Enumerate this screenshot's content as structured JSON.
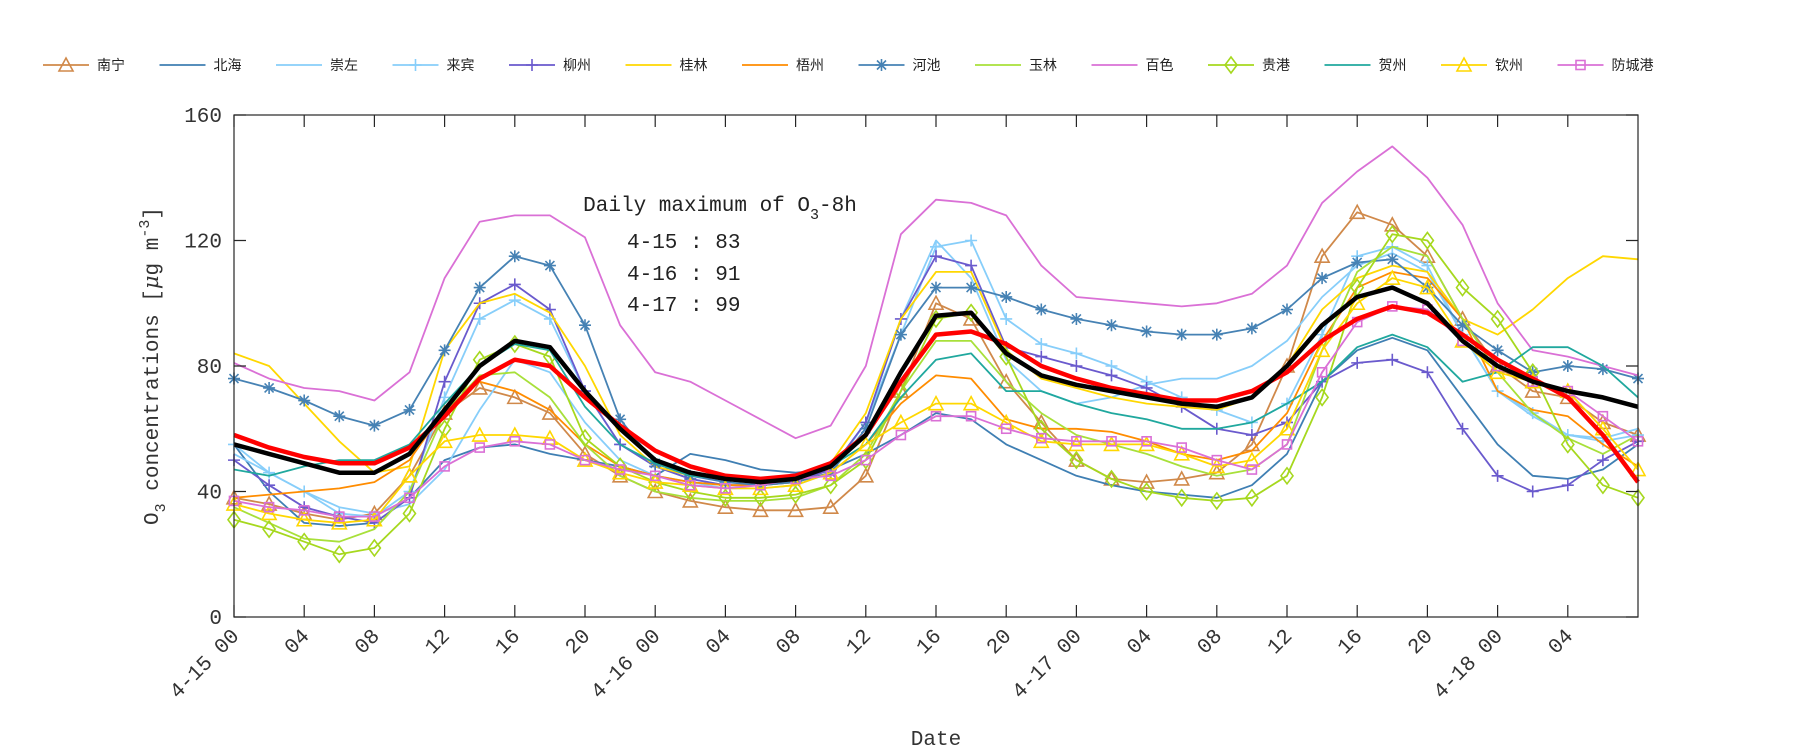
{
  "chart_data": {
    "type": "line",
    "xlabel": "Date",
    "ylabel_parts": [
      "O",
      "3",
      " concentrations [",
      "μ",
      "g m",
      "-3",
      "]"
    ],
    "ylim": [
      0,
      160
    ],
    "yticks": [
      "0",
      "40",
      "80",
      "120",
      "160"
    ],
    "xlim": [
      "4-15 00",
      "4-18 08"
    ],
    "x_ticks": [
      "4-15 00",
      "04",
      "08",
      "12",
      "16",
      "20",
      "4-16 00",
      "04",
      "08",
      "12",
      "16",
      "20",
      "4-17 00",
      "04",
      "08",
      "12",
      "16",
      "20",
      "4-18 00",
      "04"
    ],
    "x_tick_positions": [
      "4-15 00",
      "4-15 04",
      "4-15 08",
      "4-15 12",
      "4-15 16",
      "4-15 20",
      "4-16 00",
      "4-16 04",
      "4-16 08",
      "4-16 12",
      "4-16 16",
      "4-16 20",
      "4-17 00",
      "4-17 04",
      "4-17 08",
      "4-17 12",
      "4-17 16",
      "4-17 20",
      "4-18 00",
      "4-18 04"
    ],
    "grid": false,
    "legend_position": "top",
    "annotation": {
      "title_parts": [
        "Daily maximum of O",
        "3",
        "-8h"
      ],
      "lines": [
        "4-15 : 83",
        "4-16 : 91",
        "4-17 : 99"
      ]
    },
    "x": [
      "4-15 00",
      "4-15 02",
      "4-15 04",
      "4-15 06",
      "4-15 08",
      "4-15 10",
      "4-15 12",
      "4-15 14",
      "4-15 16",
      "4-15 18",
      "4-15 20",
      "4-15 22",
      "4-16 00",
      "4-16 02",
      "4-16 04",
      "4-16 06",
      "4-16 08",
      "4-16 10",
      "4-16 12",
      "4-16 14",
      "4-16 16",
      "4-16 18",
      "4-16 20",
      "4-16 22",
      "4-17 00",
      "4-17 02",
      "4-17 04",
      "4-17 06",
      "4-17 08",
      "4-17 10",
      "4-17 12",
      "4-17 14",
      "4-17 16",
      "4-17 18",
      "4-17 20",
      "4-17 22",
      "4-18 00",
      "4-18 02",
      "4-18 04",
      "4-18 06",
      "4-18 08"
    ],
    "series": [
      {
        "name": "南宁",
        "color": "#d0894a",
        "marker": "triangle",
        "values": [
          38,
          36,
          33,
          31,
          33,
          45,
          65,
          73,
          70,
          65,
          52,
          45,
          40,
          37,
          35,
          34,
          34,
          35,
          45,
          72,
          100,
          95,
          75,
          62,
          50,
          44,
          43,
          44,
          46,
          55,
          80,
          115,
          129,
          125,
          115,
          95,
          80,
          72,
          70,
          62,
          58
        ]
      },
      {
        "name": "北海",
        "color": "#3f7fb3",
        "marker": "none",
        "values": [
          55,
          40,
          30,
          29,
          30,
          38,
          50,
          54,
          55,
          52,
          50,
          48,
          45,
          52,
          50,
          47,
          46,
          47,
          52,
          58,
          65,
          63,
          55,
          50,
          45,
          42,
          40,
          39,
          38,
          42,
          52,
          75,
          85,
          89,
          85,
          70,
          55,
          45,
          44,
          47,
          55
        ]
      },
      {
        "name": "崇左",
        "color": "#87cefa",
        "marker": "none",
        "values": [
          52,
          46,
          40,
          35,
          33,
          36,
          47,
          66,
          82,
          78,
          62,
          50,
          45,
          43,
          41,
          41,
          42,
          46,
          62,
          95,
          120,
          108,
          82,
          72,
          68,
          70,
          74,
          76,
          76,
          80,
          88,
          102,
          112,
          116,
          110,
          90,
          72,
          64,
          58,
          57,
          60
        ]
      },
      {
        "name": "来宾",
        "color": "#87cefa",
        "marker": "plus",
        "values": [
          55,
          46,
          40,
          33,
          32,
          40,
          70,
          95,
          101,
          95,
          72,
          55,
          48,
          44,
          42,
          42,
          43,
          47,
          62,
          90,
          118,
          120,
          95,
          87,
          84,
          80,
          75,
          70,
          66,
          62,
          68,
          90,
          115,
          118,
          112,
          90,
          72,
          65,
          58,
          56,
          58
        ]
      },
      {
        "name": "柳州",
        "color": "#6a5acd",
        "marker": "plus",
        "values": [
          50,
          42,
          35,
          32,
          30,
          38,
          75,
          100,
          106,
          98,
          72,
          55,
          48,
          44,
          42,
          42,
          43,
          47,
          62,
          95,
          115,
          112,
          86,
          83,
          80,
          77,
          73,
          67,
          60,
          58,
          62,
          75,
          81,
          82,
          78,
          60,
          45,
          40,
          42,
          50,
          56
        ]
      },
      {
        "name": "桂林",
        "color": "#ffd700",
        "marker": "none",
        "values": [
          84,
          80,
          68,
          56,
          46,
          48,
          85,
          100,
          103,
          97,
          80,
          58,
          48,
          45,
          44,
          44,
          45,
          49,
          65,
          95,
          110,
          110,
          85,
          76,
          73,
          70,
          68,
          67,
          66,
          70,
          80,
          98,
          108,
          112,
          110,
          95,
          90,
          98,
          108,
          115,
          114
        ]
      },
      {
        "name": "梧州",
        "color": "#ff8c00",
        "marker": "none",
        "values": [
          38,
          39,
          40,
          41,
          43,
          50,
          66,
          75,
          72,
          66,
          55,
          48,
          45,
          43,
          42,
          42,
          43,
          46,
          55,
          68,
          77,
          76,
          63,
          60,
          60,
          59,
          56,
          52,
          50,
          53,
          65,
          88,
          105,
          110,
          108,
          95,
          72,
          66,
          64,
          55,
          48
        ]
      },
      {
        "name": "河池",
        "color": "#4682b4",
        "marker": "star",
        "values": [
          76,
          73,
          69,
          64,
          61,
          66,
          85,
          105,
          115,
          112,
          93,
          63,
          49,
          45,
          43,
          42,
          43,
          46,
          60,
          90,
          105,
          105,
          102,
          98,
          95,
          93,
          91,
          90,
          90,
          92,
          98,
          108,
          113,
          114,
          105,
          93,
          85,
          78,
          80,
          79,
          76
        ]
      },
      {
        "name": "玉林",
        "color": "#a8e03a",
        "marker": "none",
        "values": [
          35,
          30,
          25,
          24,
          28,
          40,
          65,
          77,
          78,
          70,
          55,
          45,
          40,
          38,
          37,
          37,
          38,
          42,
          52,
          72,
          88,
          88,
          75,
          65,
          58,
          55,
          52,
          48,
          45,
          47,
          55,
          85,
          110,
          118,
          115,
          95,
          78,
          65,
          57,
          52,
          58
        ]
      },
      {
        "name": "百色",
        "color": "#da70d6",
        "marker": "none",
        "values": [
          81,
          76,
          73,
          72,
          69,
          78,
          108,
          126,
          128,
          128,
          121,
          93,
          78,
          75,
          69,
          63,
          57,
          61,
          80,
          122,
          133,
          132,
          128,
          112,
          102,
          101,
          100,
          99,
          100,
          103,
          112,
          132,
          142,
          150,
          140,
          125,
          100,
          85,
          83,
          80,
          77
        ]
      },
      {
        "name": "贵港",
        "color": "#a6d81e",
        "marker": "diamond",
        "values": [
          31,
          28,
          24,
          20,
          22,
          33,
          60,
          82,
          87,
          83,
          57,
          48,
          43,
          40,
          38,
          38,
          39,
          42,
          50,
          72,
          95,
          97,
          83,
          60,
          50,
          44,
          40,
          38,
          37,
          38,
          45,
          70,
          105,
          122,
          120,
          105,
          95,
          78,
          55,
          42,
          38
        ]
      },
      {
        "name": "贺州",
        "color": "#20a89e",
        "marker": "none",
        "values": [
          47,
          45,
          48,
          50,
          50,
          55,
          68,
          80,
          87,
          85,
          67,
          55,
          49,
          45,
          44,
          44,
          45,
          48,
          55,
          70,
          82,
          84,
          72,
          72,
          68,
          65,
          63,
          60,
          60,
          62,
          68,
          75,
          86,
          90,
          86,
          75,
          78,
          86,
          86,
          80,
          70
        ]
      },
      {
        "name": "钦州",
        "color": "#ffd700",
        "marker": "triangle",
        "values": [
          36,
          33,
          31,
          30,
          31,
          45,
          56,
          58,
          58,
          57,
          50,
          46,
          43,
          42,
          41,
          41,
          42,
          46,
          55,
          62,
          68,
          68,
          62,
          56,
          55,
          55,
          55,
          52,
          48,
          50,
          60,
          85,
          100,
          108,
          105,
          88,
          78,
          75,
          72,
          60,
          47
        ]
      },
      {
        "name": "防城港",
        "color": "#da70d6",
        "marker": "square",
        "values": [
          37,
          35,
          34,
          32,
          32,
          38,
          48,
          54,
          56,
          55,
          50,
          47,
          45,
          42,
          41,
          42,
          44,
          45,
          50,
          58,
          64,
          64,
          60,
          57,
          56,
          56,
          56,
          54,
          50,
          47,
          55,
          78,
          94,
          99,
          98,
          88,
          80,
          75,
          72,
          64,
          56
        ]
      },
      {
        "color": "#ff0000",
        "marker": "none",
        "thick": true,
        "values": [
          58,
          54,
          51,
          49,
          49,
          54,
          64,
          76,
          82,
          80,
          70,
          61,
          53,
          48,
          45,
          44,
          45,
          49,
          58,
          75,
          90,
          91,
          87,
          80,
          76,
          73,
          71,
          69,
          69,
          72,
          78,
          88,
          95,
          99,
          97,
          90,
          82,
          76,
          70,
          58,
          43
        ]
      },
      {
        "color": "#000000",
        "marker": "none",
        "thick": true,
        "values": [
          55,
          52,
          49,
          46,
          46,
          52,
          66,
          80,
          88,
          86,
          72,
          60,
          50,
          46,
          44,
          43,
          44,
          48,
          58,
          78,
          96,
          97,
          84,
          77,
          74,
          72,
          70,
          68,
          67,
          70,
          80,
          93,
          102,
          105,
          100,
          88,
          80,
          75,
          72,
          70,
          67
        ]
      }
    ]
  }
}
